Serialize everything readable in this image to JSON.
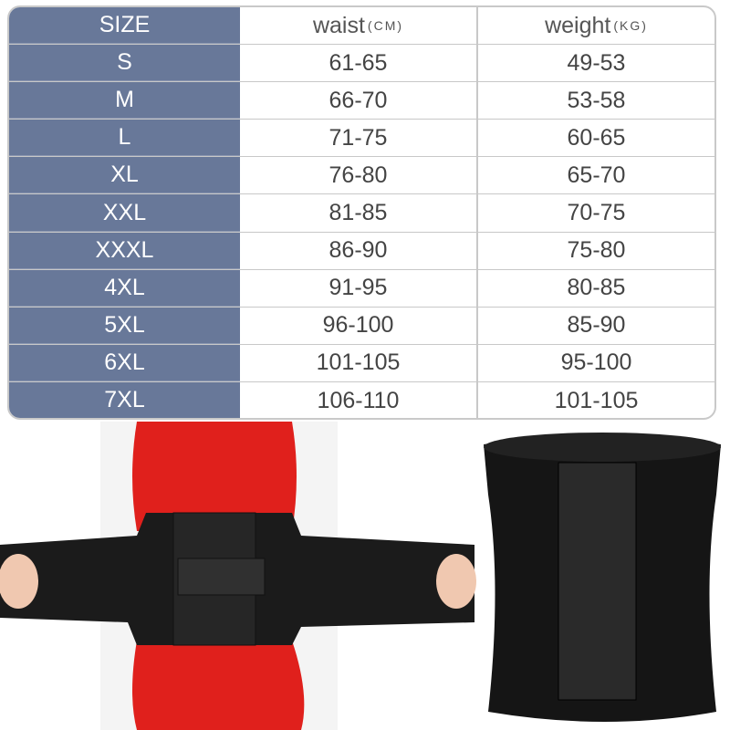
{
  "size_chart": {
    "headers": {
      "size": "SIZE",
      "waist": "waist",
      "waist_unit": "(CM)",
      "weight": "weight",
      "weight_unit": "(KG)"
    },
    "rows": [
      {
        "size": "S",
        "waist": "61-65",
        "weight": "49-53"
      },
      {
        "size": "M",
        "waist": "66-70",
        "weight": "53-58"
      },
      {
        "size": "L",
        "waist": "71-75",
        "weight": "60-65"
      },
      {
        "size": "XL",
        "waist": "76-80",
        "weight": "65-70"
      },
      {
        "size": "XXL",
        "waist": "81-85",
        "weight": "70-75"
      },
      {
        "size": "XXXL",
        "waist": "86-90",
        "weight": "75-80"
      },
      {
        "size": "4XL",
        "waist": "91-95",
        "weight": "80-85"
      },
      {
        "size": "5XL",
        "waist": "96-100",
        "weight": "85-90"
      },
      {
        "size": "6XL",
        "waist": "101-105",
        "weight": "95-100"
      },
      {
        "size": "7XL",
        "waist": "106-110",
        "weight": "101-105"
      }
    ]
  },
  "colors": {
    "size_column": "#687899",
    "belt": "#1a1a1a",
    "dress": "#e0201c"
  }
}
